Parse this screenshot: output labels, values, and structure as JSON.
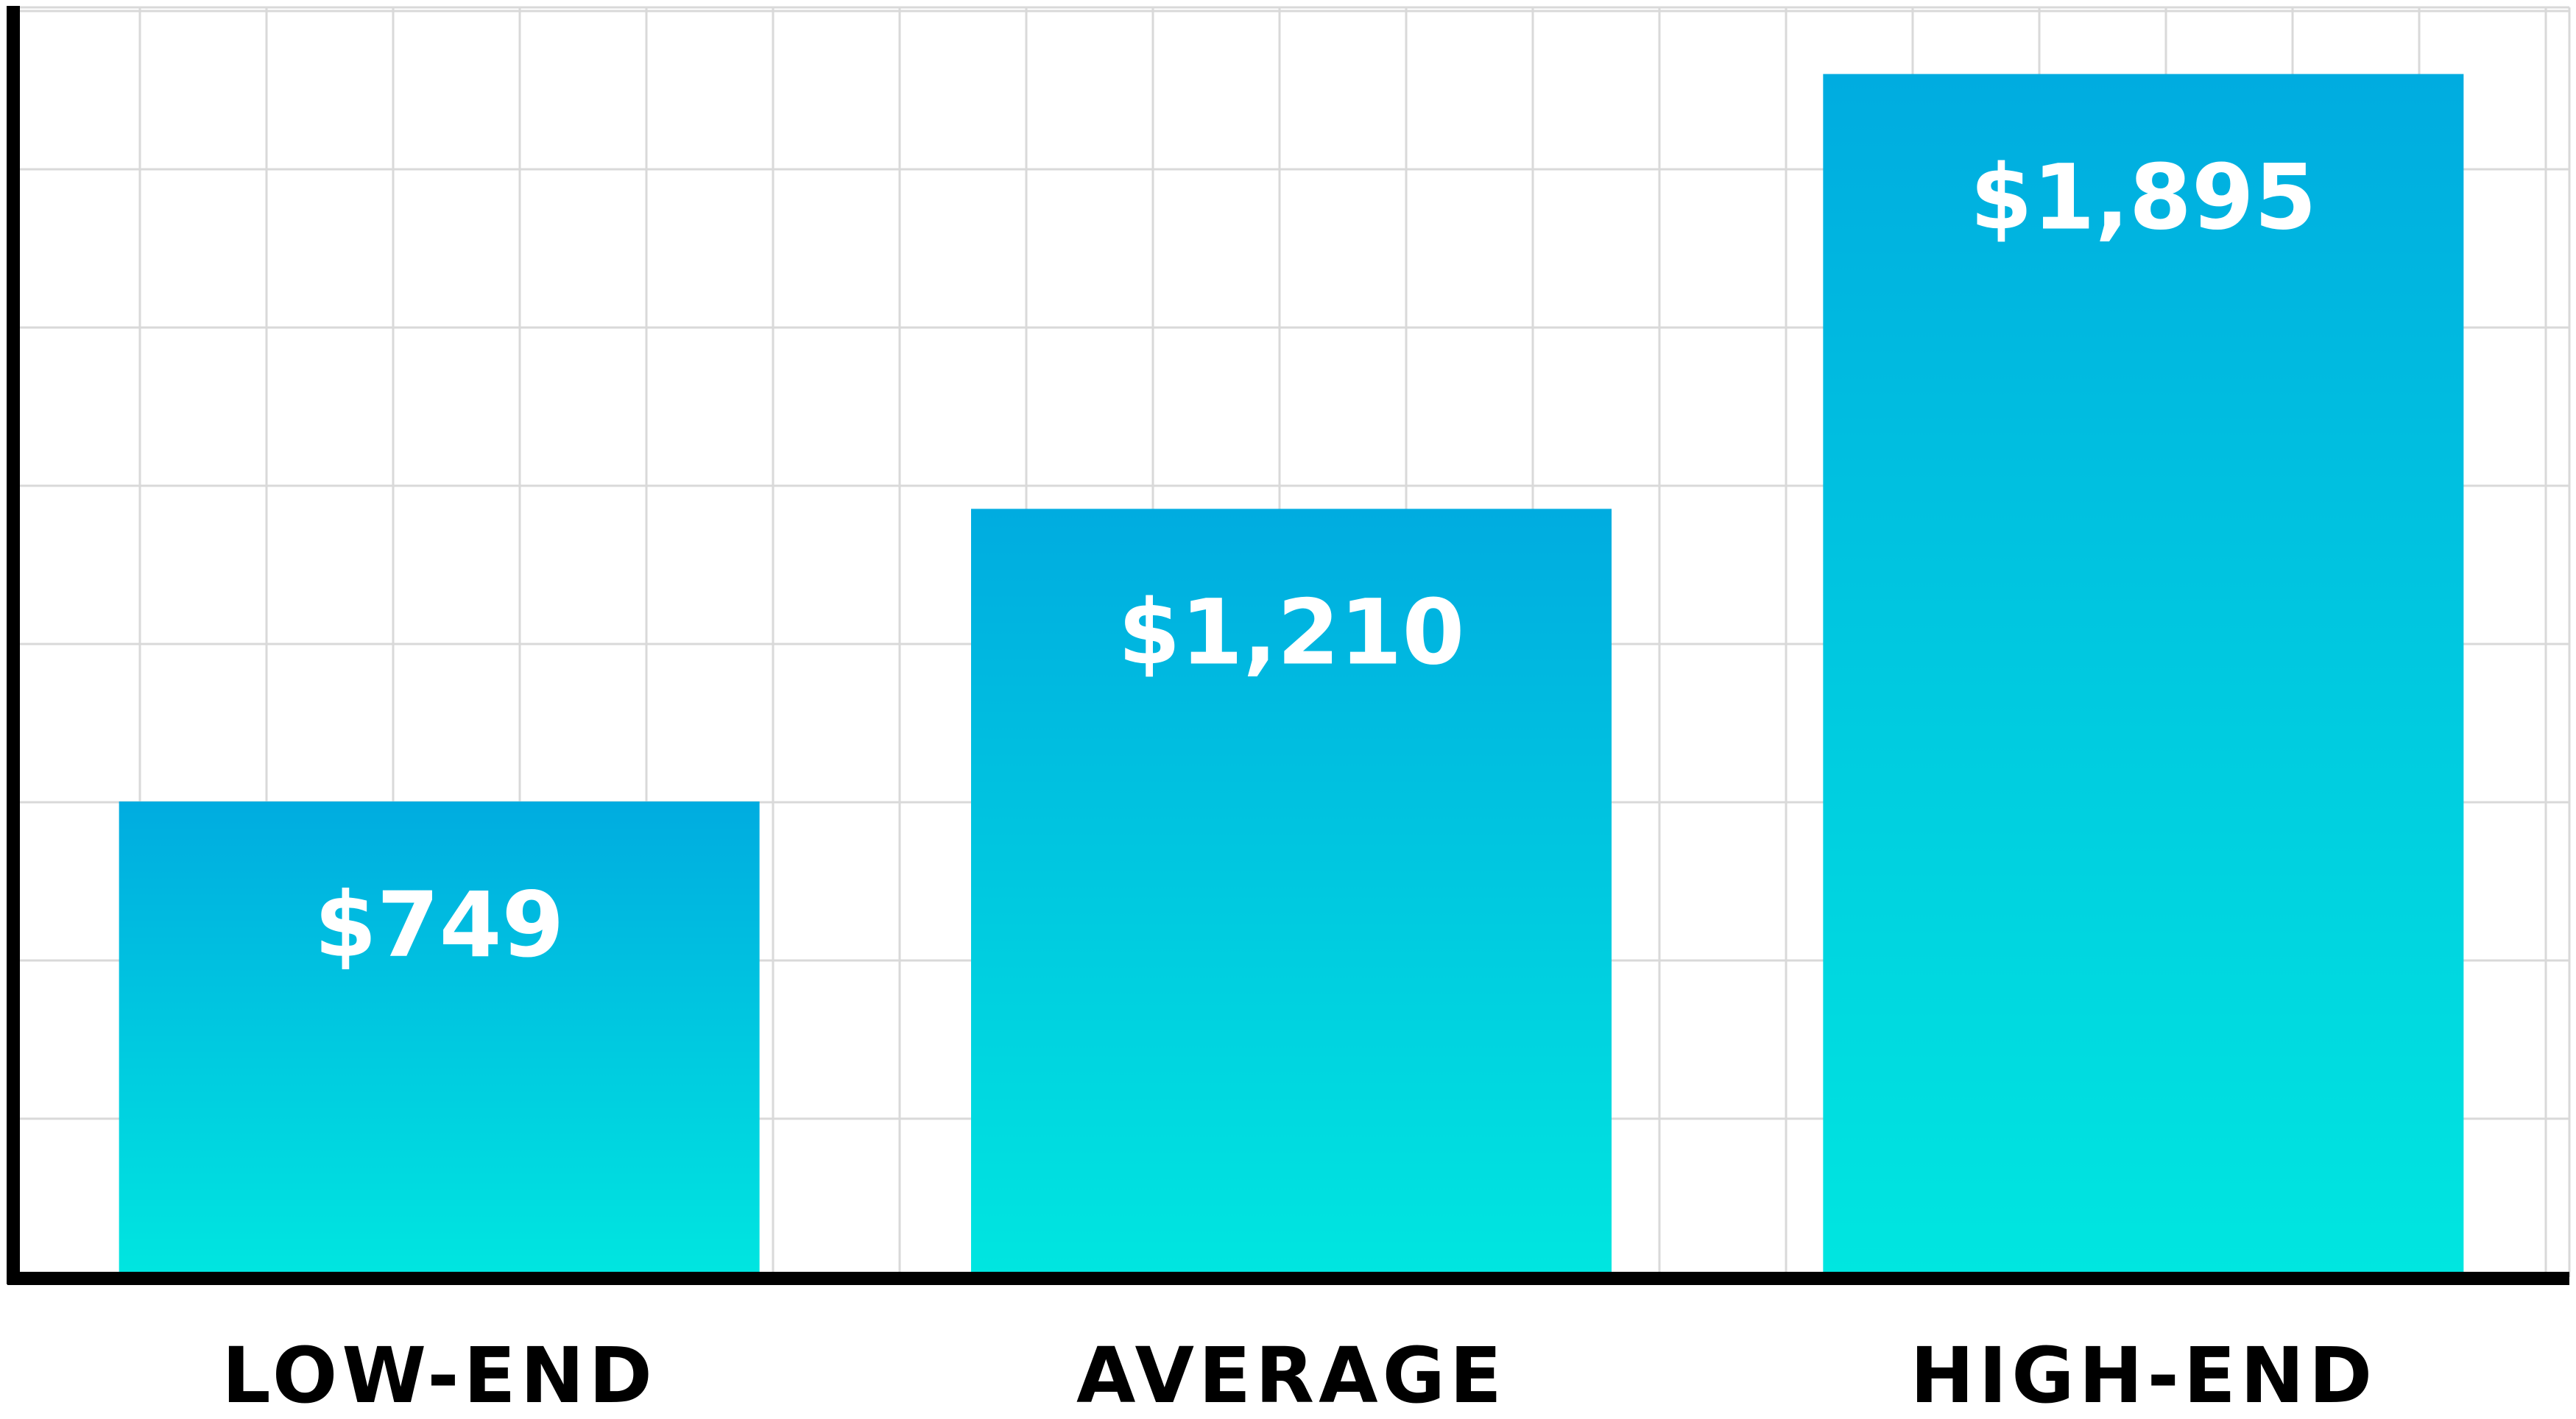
{
  "chart_data": {
    "type": "bar",
    "categories": [
      "LOW-END",
      "AVERAGE",
      "HIGH-END"
    ],
    "values": [
      749,
      1210,
      1895
    ],
    "value_labels": [
      "$749",
      "$1,210",
      "$1,895"
    ],
    "title": "",
    "xlabel": "",
    "ylabel": "",
    "ylim": [
      0,
      2000
    ],
    "grid": true,
    "legend": "none",
    "colors": {
      "bar_top": "#00ACE0",
      "bar_bottom": "#00E6E0",
      "grid": "#D9D9D9",
      "axis": "#000000",
      "value_label": "#FFFFFF",
      "category_label": "#000000"
    }
  }
}
